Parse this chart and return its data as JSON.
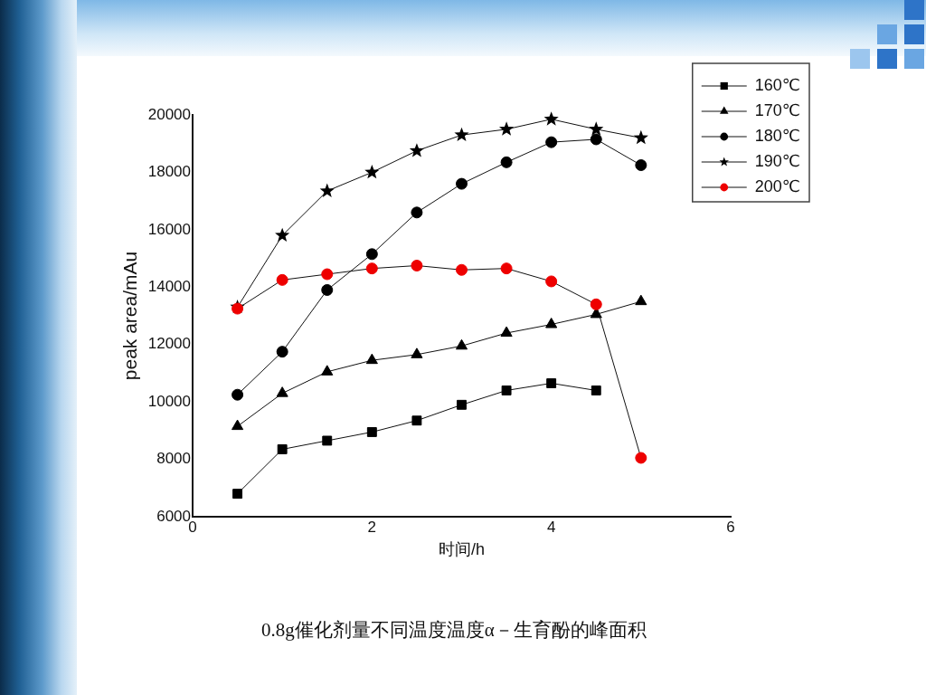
{
  "chart_data": {
    "type": "line",
    "xlabel": "时间/h",
    "ylabel": "peak area/mAu",
    "x": [
      0.5,
      1,
      1.5,
      2,
      2.5,
      3,
      3.5,
      4,
      4.5,
      5
    ],
    "xlim": [
      0,
      6
    ],
    "xticks": [
      0,
      2,
      4,
      6
    ],
    "ylim": [
      6000,
      20000
    ],
    "yticks": [
      6000,
      8000,
      10000,
      12000,
      14000,
      16000,
      18000,
      20000
    ],
    "legend": "top right",
    "series": [
      {
        "name": "160℃",
        "color": "#000000",
        "marker": "square",
        "values": [
          6800,
          8350,
          8650,
          8950,
          9350,
          9900,
          10400,
          10650,
          10400,
          null
        ]
      },
      {
        "name": "170℃",
        "color": "#000000",
        "marker": "triangle",
        "values": [
          9150,
          10300,
          11050,
          11450,
          11650,
          11950,
          12400,
          12700,
          13050,
          13500
        ]
      },
      {
        "name": "180℃",
        "color": "#000000",
        "marker": "circle",
        "values": [
          10250,
          11750,
          13900,
          15150,
          16600,
          17600,
          18350,
          19050,
          19150,
          18250
        ]
      },
      {
        "name": "190℃",
        "color": "#000000",
        "marker": "star",
        "values": [
          13300,
          15800,
          17350,
          18000,
          18750,
          19300,
          19500,
          19850,
          19500,
          19200
        ]
      },
      {
        "name": "200℃",
        "color": "#ee0000",
        "marker": "circle",
        "values": [
          13250,
          14250,
          14450,
          14650,
          14750,
          14600,
          14650,
          14200,
          13400,
          8050
        ]
      }
    ],
    "annotations": [
      "0.8g催化剂量不同温度温度α－生育酚的峰面积"
    ]
  }
}
